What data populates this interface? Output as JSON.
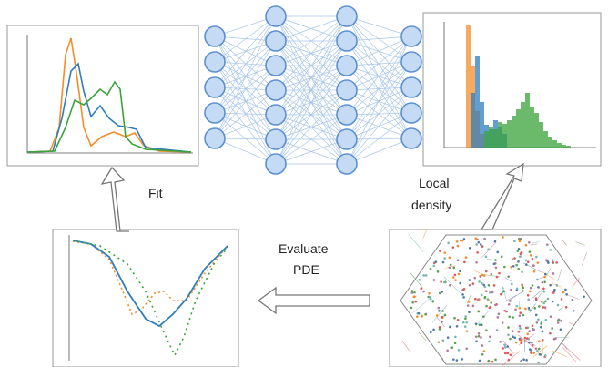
{
  "labels": {
    "fit": "Fit",
    "local_density": [
      "Local",
      "density"
    ],
    "evaluate_pde": [
      "Evaluate",
      "PDE"
    ]
  }
}
